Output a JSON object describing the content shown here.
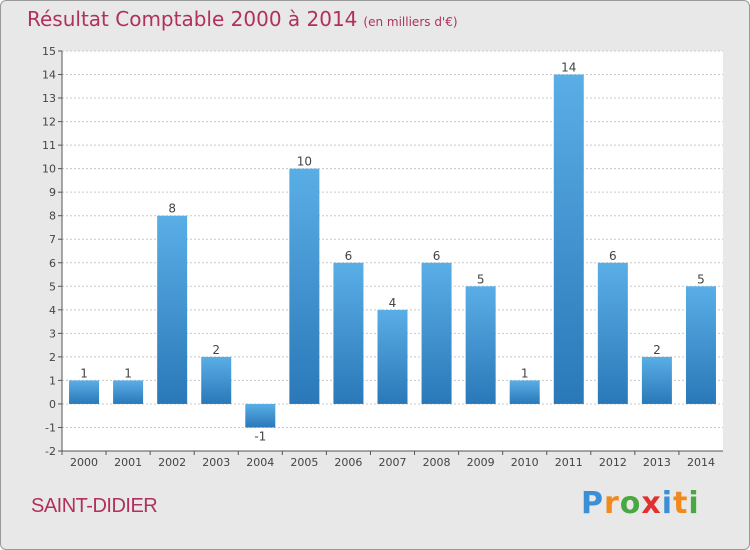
{
  "title": "Résultat Comptable 2000 à 2014",
  "subtitle": "(en milliers d'€)",
  "place": "SAINT-DIDIER",
  "logo": {
    "letters": [
      "P",
      "r",
      "o",
      "x",
      "i",
      "t",
      "i"
    ],
    "colors": [
      "#3a8fd6",
      "#f08a1c",
      "#4aa842",
      "#e0312e",
      "#3a8fd6",
      "#f08a1c",
      "#4aa842"
    ]
  },
  "colors": {
    "bar": "#3d95d6",
    "bar_dark": "#2a78b8",
    "title": "#b0305e",
    "grid": "#c8c8c8",
    "plot_bg": "#ffffff"
  },
  "chart_data": {
    "type": "bar",
    "categories": [
      "2000",
      "2001",
      "2002",
      "2003",
      "2004",
      "2005",
      "2006",
      "2007",
      "2008",
      "2009",
      "2010",
      "2011",
      "2012",
      "2013",
      "2014"
    ],
    "values": [
      1,
      1,
      8,
      2,
      -1,
      10,
      6,
      4,
      6,
      5,
      1,
      14,
      6,
      2,
      5
    ],
    "ylim": [
      -2,
      15
    ],
    "yticks": [
      -2,
      -1,
      0,
      1,
      2,
      3,
      4,
      5,
      6,
      7,
      8,
      9,
      10,
      11,
      12,
      13,
      14,
      15
    ],
    "grid": true,
    "xlabel": "",
    "ylabel": ""
  }
}
